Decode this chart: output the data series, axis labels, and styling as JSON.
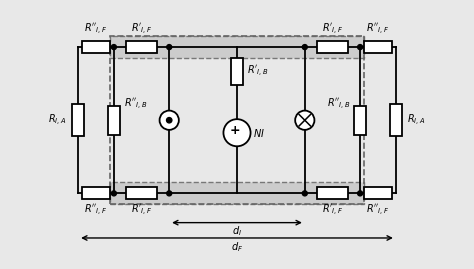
{
  "bg_color": "#e8e8e8",
  "white": "#ffffff",
  "black": "#000000",
  "gray_fill": "#cccccc",
  "fig_width": 4.74,
  "fig_height": 2.69,
  "dpi": 100
}
